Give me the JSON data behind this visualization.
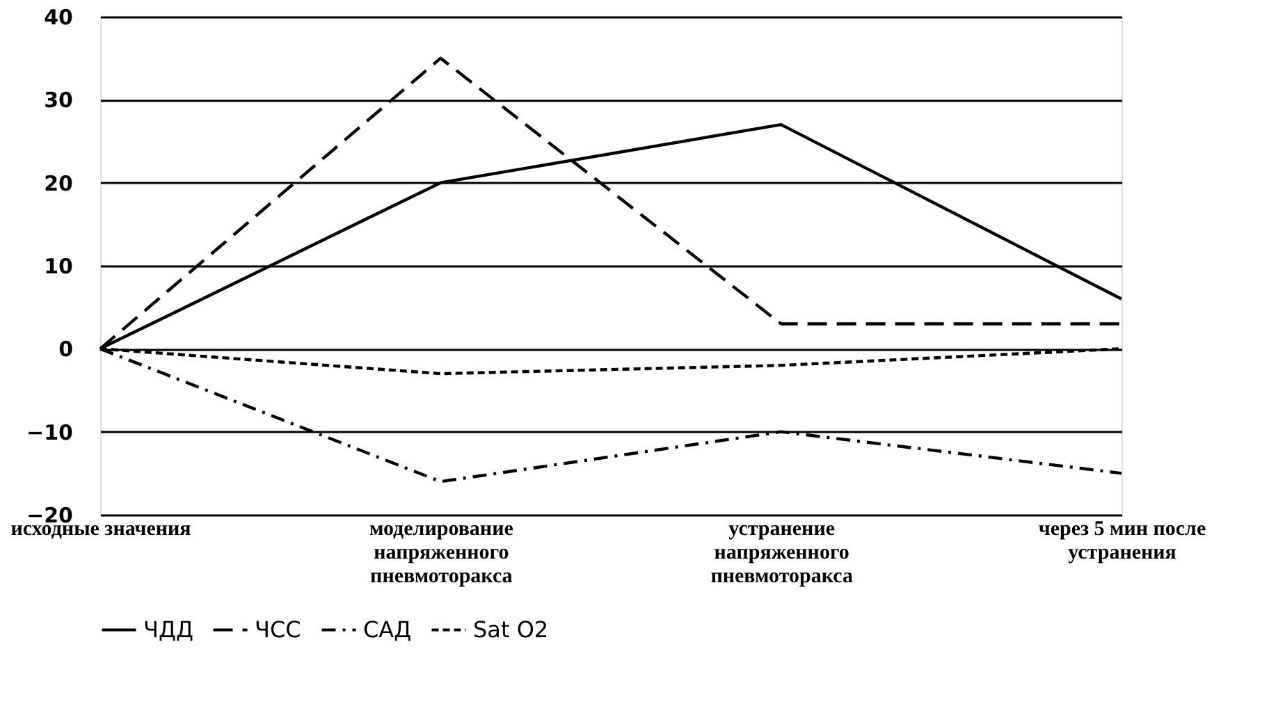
{
  "chart_data": {
    "type": "line",
    "categories": [
      "исходные  значения",
      "моделирование напряженного пневмоторакса",
      "устранение напряженного пневмоторакса",
      "через 5 мин после устранения"
    ],
    "series": [
      {
        "name": "ЧДД",
        "color": "#000000",
        "line_style": "solid",
        "values": [
          0,
          20,
          27,
          6
        ]
      },
      {
        "name": "ЧСС",
        "color": "#000000",
        "line_style": "dashed",
        "values": [
          0,
          35,
          3,
          3
        ]
      },
      {
        "name": "САД",
        "color": "#000000",
        "line_style": "dashdot",
        "values": [
          0,
          -16,
          -10,
          -15
        ]
      },
      {
        "name": "Sat O2",
        "color": "#000000",
        "line_style": "dotted",
        "values": [
          0,
          -3,
          -2,
          0
        ]
      }
    ],
    "ylim": [
      -20,
      40
    ],
    "yticks": [
      -20,
      -10,
      0,
      10,
      20,
      30,
      40
    ],
    "grid": "y",
    "legend": "bottom",
    "marker": "none"
  }
}
